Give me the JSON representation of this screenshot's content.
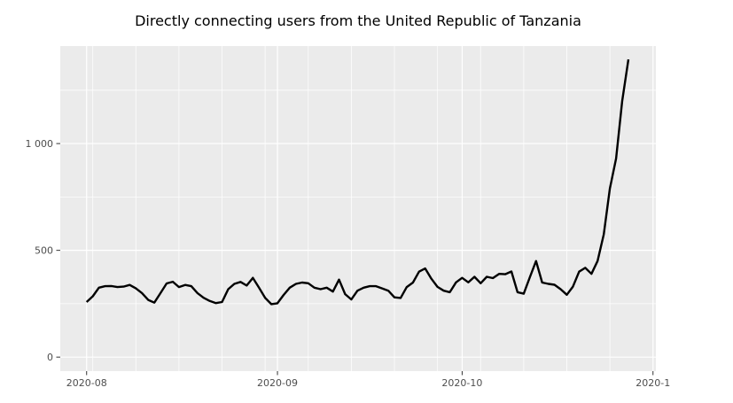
{
  "chart_data": {
    "type": "line",
    "title": "Directly connecting users from the United Republic of Tanzania",
    "xlabel": "",
    "ylabel": "",
    "legend": false,
    "grid": true,
    "dates": [
      "2020-08-01",
      "2020-08-02",
      "2020-08-03",
      "2020-08-04",
      "2020-08-05",
      "2020-08-06",
      "2020-08-07",
      "2020-08-08",
      "2020-08-09",
      "2020-08-10",
      "2020-08-11",
      "2020-08-12",
      "2020-08-13",
      "2020-08-14",
      "2020-08-15",
      "2020-08-16",
      "2020-08-17",
      "2020-08-18",
      "2020-08-19",
      "2020-08-20",
      "2020-08-21",
      "2020-08-22",
      "2020-08-23",
      "2020-08-24",
      "2020-08-25",
      "2020-08-26",
      "2020-08-27",
      "2020-08-28",
      "2020-08-29",
      "2020-08-30",
      "2020-08-31",
      "2020-09-01",
      "2020-09-02",
      "2020-09-03",
      "2020-09-04",
      "2020-09-05",
      "2020-09-06",
      "2020-09-07",
      "2020-09-08",
      "2020-09-09",
      "2020-09-10",
      "2020-09-11",
      "2020-09-12",
      "2020-09-13",
      "2020-09-14",
      "2020-09-15",
      "2020-09-16",
      "2020-09-17",
      "2020-09-18",
      "2020-09-19",
      "2020-09-20",
      "2020-09-21",
      "2020-09-22",
      "2020-09-23",
      "2020-09-24",
      "2020-09-25",
      "2020-09-26",
      "2020-09-27",
      "2020-09-28",
      "2020-09-29",
      "2020-09-30",
      "2020-10-01",
      "2020-10-02",
      "2020-10-03",
      "2020-10-04",
      "2020-10-05",
      "2020-10-06",
      "2020-10-07",
      "2020-10-08",
      "2020-10-09",
      "2020-10-10",
      "2020-10-11",
      "2020-10-12",
      "2020-10-13",
      "2020-10-14",
      "2020-10-15",
      "2020-10-16",
      "2020-10-17",
      "2020-10-18",
      "2020-10-19",
      "2020-10-20",
      "2020-10-21",
      "2020-10-22",
      "2020-10-23",
      "2020-10-24",
      "2020-10-25",
      "2020-10-26",
      "2020-10-27",
      "2020-10-28"
    ],
    "values": [
      258,
      285,
      325,
      332,
      333,
      328,
      330,
      338,
      322,
      300,
      268,
      255,
      300,
      345,
      353,
      328,
      338,
      332,
      300,
      278,
      263,
      253,
      258,
      318,
      343,
      352,
      335,
      371,
      325,
      277,
      248,
      252,
      291,
      325,
      343,
      349,
      346,
      325,
      318,
      325,
      307,
      363,
      295,
      270,
      311,
      325,
      332,
      332,
      322,
      311,
      280,
      277,
      328,
      349,
      400,
      415,
      367,
      329,
      311,
      304,
      350,
      371,
      350,
      376,
      346,
      376,
      370,
      390,
      388,
      401,
      304,
      297,
      374,
      450,
      349,
      343,
      339,
      318,
      292,
      330,
      400,
      418,
      390,
      450,
      575,
      790,
      930,
      1200,
      1394
    ],
    "x_ticks": [
      {
        "day": 0,
        "label": "2020-08"
      },
      {
        "day": 31,
        "label": "2020-09"
      },
      {
        "day": 61,
        "label": "2020-10"
      },
      {
        "day": 92,
        "label": "2020-1"
      }
    ],
    "x_minor_days": [
      1,
      8,
      15,
      22,
      29,
      36,
      43,
      50,
      57,
      64,
      71,
      78,
      85
    ],
    "y_ticks": [
      {
        "value": 0,
        "label": "0"
      },
      {
        "value": 500,
        "label": "500"
      },
      {
        "value": 1000,
        "label": "1 000"
      }
    ],
    "y_minor_values": [
      250,
      750,
      1250
    ],
    "xlim_days": [
      -4.28,
      92.47
    ],
    "ylim": [
      -65.6,
      1456.6
    ],
    "colors": {
      "line": "#000000",
      "panel": "#EBEBEB",
      "grid_major": "#FFFFFF",
      "grid_minor": "#FFFFFF",
      "axis_text": "#4D4D4D",
      "tick_mark": "#333333",
      "title": "#000000"
    }
  }
}
